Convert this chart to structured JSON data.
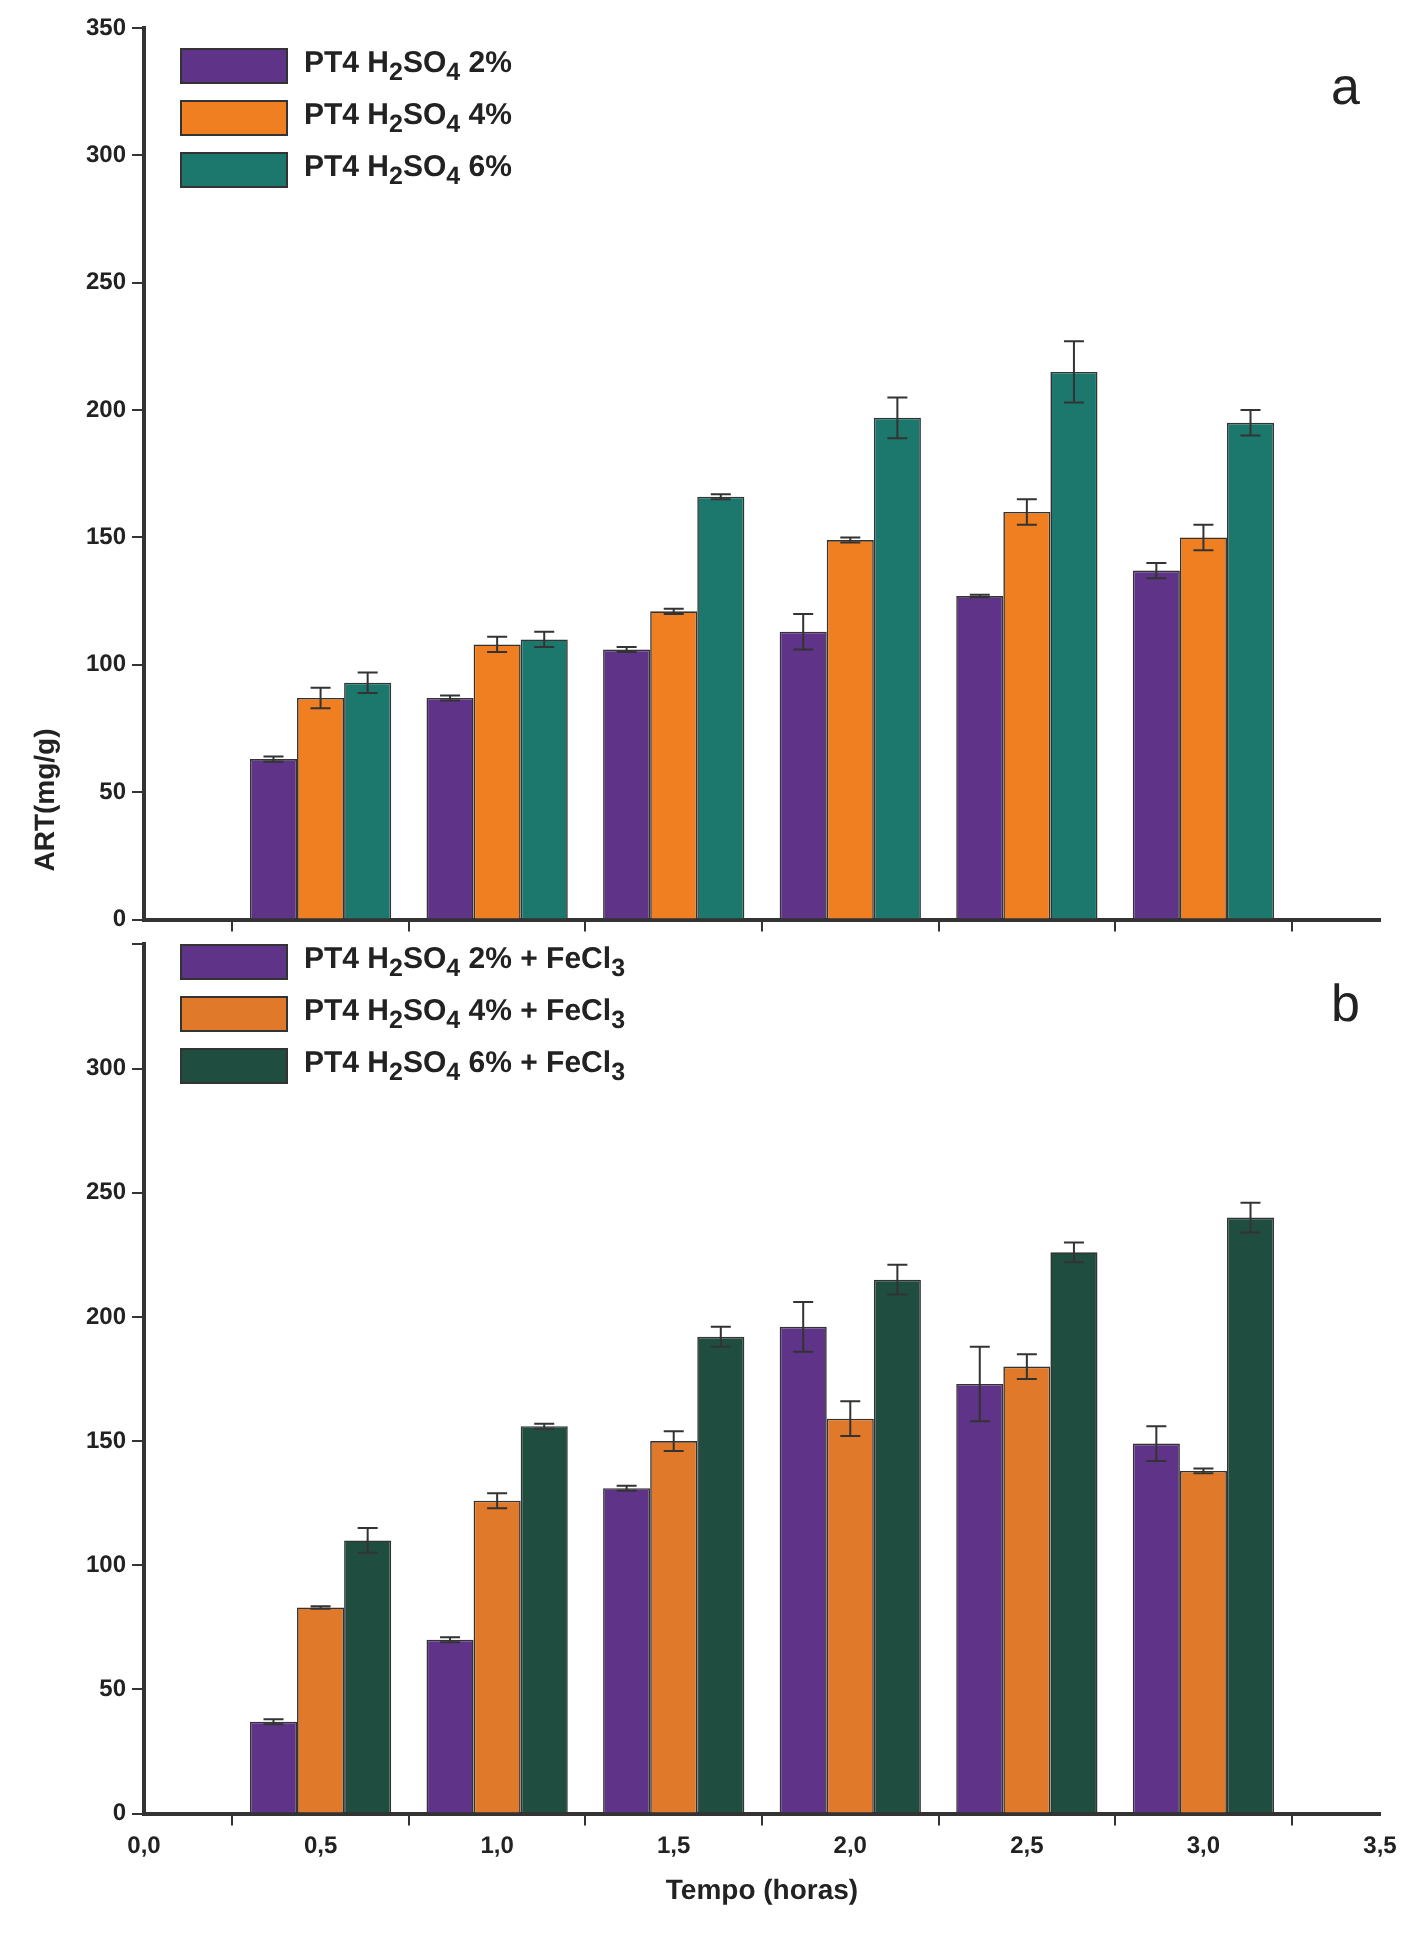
{
  "chart_data": [
    {
      "type": "bar",
      "ylabel": "ART(mg/g)",
      "annotations": [
        "a"
      ],
      "x": [
        0.5,
        1.0,
        1.5,
        2.0,
        2.5,
        3.0
      ],
      "series": [
        {
          "name": "PT4 H$_{2}$SO$_{4}$ 2%",
          "color": "#5f3488",
          "values": [
            63,
            87,
            106,
            113,
            127,
            137
          ],
          "errors": [
            1,
            1,
            1,
            7,
            0.5,
            3
          ]
        },
        {
          "name": "PT4 H$_{2}$SO$_{4}$ 4%",
          "color": "#f07f22",
          "values": [
            87,
            108,
            121,
            149,
            160,
            150
          ],
          "errors": [
            4,
            3,
            1,
            1,
            5,
            5
          ]
        },
        {
          "name": "PT4 H$_{2}$SO$_{4}$ 6%",
          "color": "#1c786d",
          "values": [
            93,
            110,
            166,
            197,
            215,
            195
          ],
          "errors": [
            4,
            3,
            1,
            8,
            12,
            5
          ]
        }
      ],
      "xlim": [
        0,
        3.5
      ],
      "xticks": [
        0,
        0.5,
        1,
        1.5,
        2,
        2.5,
        3,
        3.5
      ],
      "ylim": [
        0,
        350
      ],
      "yticks": [
        0,
        50,
        100,
        150,
        200,
        250,
        300,
        350
      ],
      "tick_labels": "y",
      "legend": "top left",
      "grid": false
    },
    {
      "type": "bar",
      "xlabel": "Tempo (horas)",
      "annotations": [
        "b"
      ],
      "x": [
        0.5,
        1.0,
        1.5,
        2.0,
        2.5,
        3.0
      ],
      "series": [
        {
          "name": "PT4 H$_{2}$SO$_{4}$ 2% + FeCl$_{3}$",
          "color": "#5f3488",
          "values": [
            37,
            70,
            131,
            196,
            173,
            149
          ],
          "errors": [
            1,
            1,
            1,
            10,
            15,
            7
          ]
        },
        {
          "name": "PT4 H$_{2}$SO$_{4}$ 4% + FeCl$_{3}$",
          "color": "#e07a2a",
          "values": [
            83,
            126,
            150,
            159,
            180,
            138
          ],
          "errors": [
            0.5,
            3,
            4,
            7,
            5,
            1
          ]
        },
        {
          "name": "PT4 H$_{2}$SO$_{4}$ 6% + FeCl$_{3}$",
          "color": "#1f4d40",
          "values": [
            110,
            156,
            192,
            215,
            226,
            240
          ],
          "errors": [
            5,
            1,
            4,
            6,
            4,
            6
          ]
        }
      ],
      "xlim": [
        0,
        3.5
      ],
      "xticks": [
        {
          "value": 0,
          "label": "0,0"
        },
        {
          "value": 0.5,
          "label": "0,5"
        },
        {
          "value": 1,
          "label": "1,0"
        },
        {
          "value": 1.5,
          "label": "1,5"
        },
        {
          "value": 2,
          "label": "2,0"
        },
        {
          "value": 2.5,
          "label": "2,5"
        },
        {
          "value": 3,
          "label": "3,0"
        },
        {
          "value": 3.5,
          "label": "3,5"
        }
      ],
      "ylim": [
        0,
        350
      ],
      "yticks": [
        0,
        50,
        100,
        150,
        200,
        250,
        300,
        {
          "value": 350,
          "label": null
        }
      ],
      "legend": "top left",
      "grid": false
    }
  ]
}
